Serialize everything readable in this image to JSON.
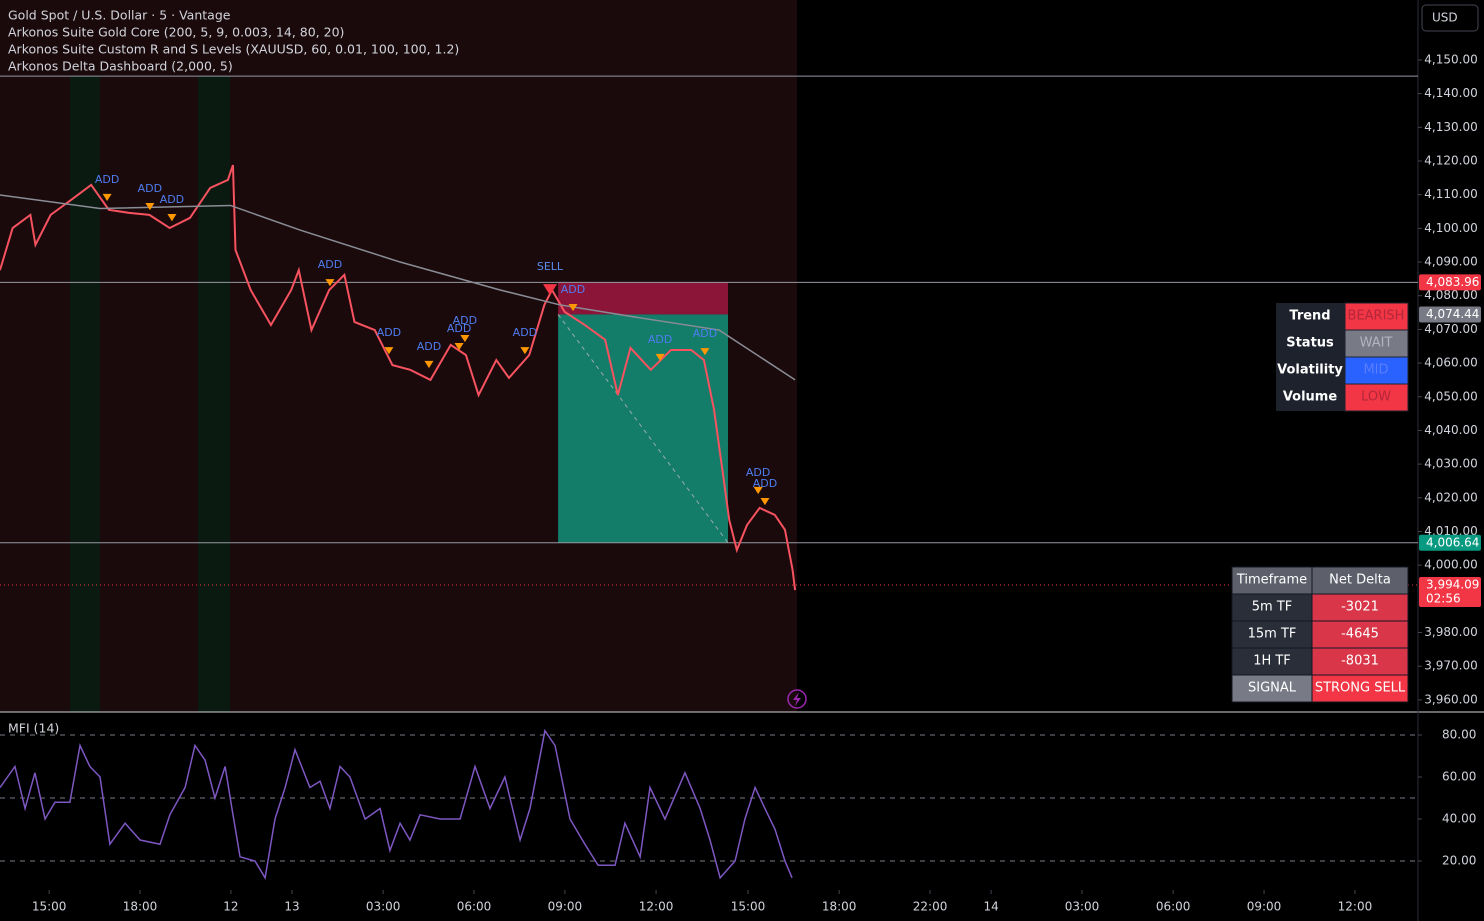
{
  "header": {
    "title": "Gold Spot / U.S. Dollar · 5 · Vantage",
    "indicators": [
      "Arkonos Suite Gold Core (200, 5, 9, 0.003, 14, 80, 20)",
      "Arkonos Suite Custom R and S Levels (XAUUSD, 60, 0.01, 100, 100, 1.2)",
      "Arkonos Delta Dashboard (2,000, 5)"
    ],
    "currency": "USD"
  },
  "chart_data": [
    {
      "type": "line",
      "xlim": [
        0,
        560
      ],
      "ylim": [
        3956.4,
        4167.8
      ],
      "yticks": [
        {
          "value": 4150,
          "label": "4,150.00"
        },
        {
          "value": 4140,
          "label": "4,140.00"
        },
        {
          "value": 4130,
          "label": "4,130.00"
        },
        {
          "value": 4120,
          "label": "4,120.00"
        },
        {
          "value": 4110,
          "label": "4,110.00"
        },
        {
          "value": 4100,
          "label": "4,100.00"
        },
        {
          "value": 4090,
          "label": "4,090.00"
        },
        {
          "value": 4080,
          "label": "4,080.00"
        },
        {
          "value": 4070,
          "label": "4,070.00"
        },
        {
          "value": 4060,
          "label": "4,060.00"
        },
        {
          "value": 4050,
          "label": "4,050.00"
        },
        {
          "value": 4040,
          "label": "4,040.00"
        },
        {
          "value": 4030,
          "label": "4,030.00"
        },
        {
          "value": 4020,
          "label": "4,020.00"
        },
        {
          "value": 4010,
          "label": "4,010.00"
        },
        {
          "value": 4000,
          "label": "4,000.00"
        },
        {
          "value": 3980,
          "label": "3,980.00"
        },
        {
          "value": 3970,
          "label": "3,970.00"
        },
        {
          "value": 3960,
          "label": "3,960.00"
        }
      ],
      "series": [
        {
          "color": "#f7525f",
          "x": [
            0,
            5,
            12,
            14,
            20,
            28,
            36,
            43,
            51,
            59,
            67,
            75,
            83,
            90,
            92,
            93,
            99,
            107,
            115,
            118,
            123,
            130,
            136,
            140,
            148,
            155,
            162,
            170,
            178,
            184,
            189,
            196,
            201,
            209,
            215,
            218,
            223,
            231,
            239,
            244,
            249,
            257,
            265,
            273,
            278,
            282,
            285,
            288,
            291,
            295,
            300,
            306,
            310,
            313,
            314
          ],
          "values": [
            4087.6,
            4100.1,
            4104.0,
            4095.1,
            4104.0,
            4108.4,
            4112.9,
            4105.5,
            4104.6,
            4104.0,
            4100.1,
            4103.1,
            4112.0,
            4114.4,
            4118.8,
            4093.6,
            4081.7,
            4071.3,
            4081.7,
            4087.6,
            4069.8,
            4081.7,
            4086.2,
            4072.2,
            4069.8,
            4059.4,
            4058.0,
            4055.0,
            4065.4,
            4062.4,
            4050.5,
            4060.9,
            4055.6,
            4062.4,
            4077.3,
            4081.7,
            4075.2,
            4071.3,
            4066.9,
            4050.5,
            4064.5,
            4058.0,
            4063.9,
            4063.9,
            4060.9,
            4046.1,
            4029.8,
            4013.4,
            4004.5,
            4011.9,
            4017.0,
            4014.9,
            4010.5,
            3998.6,
            3992.6
          ]
        },
        {
          "color": "#8a8d96",
          "x": [
            0,
            39.5,
            91,
            118.5,
            158,
            197.5,
            221,
            253,
            284,
            314
          ],
          "values": [
            4109.9,
            4105.9,
            4106.8,
            4099.5,
            4090.0,
            4081.7,
            4077.3,
            4073.4,
            4069.8,
            4055.0
          ]
        }
      ],
      "annotations": [
        {
          "text": "ADD",
          "x": 42.3,
          "y": 4114.4
        },
        {
          "text": "ADD",
          "x": 59.2,
          "y": 4111.7
        },
        {
          "text": "ADD",
          "x": 67.9,
          "y": 4108.4
        },
        {
          "text": "ADD",
          "x": 130.3,
          "y": 4089.1
        },
        {
          "text": "ADD",
          "x": 153.6,
          "y": 4068.9
        },
        {
          "text": "ADD",
          "x": 169.4,
          "y": 4064.8
        },
        {
          "text": "ADD",
          "x": 181.3,
          "y": 4070.1
        },
        {
          "text": "ADD",
          "x": 183.6,
          "y": 4072.5
        },
        {
          "text": "ADD",
          "x": 207.3,
          "y": 4068.9
        },
        {
          "text": "ADD",
          "x": 226.3,
          "y": 4081.7
        },
        {
          "text": "ADD",
          "x": 260.7,
          "y": 4066.9
        },
        {
          "text": "ADD",
          "x": 278.4,
          "y": 4068.6
        },
        {
          "text": "ADD",
          "x": 299.4,
          "y": 4027.4
        },
        {
          "text": "ADD",
          "x": 302.1,
          "y": 4024.1
        },
        {
          "text": "SELL",
          "x": 217.2,
          "y": 4088.5
        }
      ],
      "levels": [
        4145.2
      ],
      "price_labels": [
        {
          "value": 4083.96,
          "label": "4,083.96",
          "color": "#f23645",
          "line": true
        },
        {
          "value": 4074.44,
          "label": "4,074.44",
          "color": "#787b86",
          "line": false
        },
        {
          "value": 4006.64,
          "label": "4,006.64",
          "color": "#089981",
          "line": true
        },
        {
          "value": 3994.09,
          "label": "3,994.09",
          "color": "#f23645",
          "line": false,
          "countdown": "02:56"
        }
      ],
      "position": {
        "x": [
          220.4,
          287.5
        ],
        "stop": 4083.96,
        "entry": 4074.44,
        "target": 4006.64
      }
    },
    {
      "type": "line",
      "title": "MFI (14)",
      "xlim": [
        0,
        560
      ],
      "ylim": [
        6.2,
        90.95
      ],
      "yticks": [
        {
          "value": 80,
          "label": "80.00"
        },
        {
          "value": 60,
          "label": "60.00"
        },
        {
          "value": 40,
          "label": "40.00"
        },
        {
          "value": 20,
          "label": "20.00"
        }
      ],
      "bands": [
        80,
        50,
        20
      ],
      "xticks": [
        {
          "value": 19.4,
          "label": "15:00"
        },
        {
          "value": 55.3,
          "label": "18:00"
        },
        {
          "value": 91.2,
          "label": "12"
        },
        {
          "value": 115.3,
          "label": "13"
        },
        {
          "value": 151.3,
          "label": "03:00"
        },
        {
          "value": 187.2,
          "label": "06:00"
        },
        {
          "value": 223.1,
          "label": "09:00"
        },
        {
          "value": 259.1,
          "label": "12:00"
        },
        {
          "value": 295.4,
          "label": "15:00"
        },
        {
          "value": 331.4,
          "label": "18:00"
        },
        {
          "value": 367.3,
          "label": "22:00"
        },
        {
          "value": 391.4,
          "label": "14"
        },
        {
          "value": 427.3,
          "label": "03:00"
        },
        {
          "value": 463.3,
          "label": "06:00"
        },
        {
          "value": 499.2,
          "label": "09:00"
        },
        {
          "value": 535.1,
          "label": "12:00"
        }
      ],
      "series": [
        {
          "color": "#7e57c2",
          "x": [
            0,
            5.9,
            9.9,
            13.8,
            17.8,
            21.7,
            27.6,
            31.6,
            35.5,
            39.5,
            43.4,
            49.4,
            55.3,
            63.2,
            67.1,
            73.1,
            77,
            81,
            84.9,
            88.9,
            91.6,
            94.8,
            100.7,
            104.7,
            108.6,
            112.6,
            116.5,
            122.4,
            126.4,
            130.3,
            134.3,
            138.2,
            144.2,
            150.1,
            154,
            158,
            161.9,
            165.9,
            173.8,
            181.7,
            187.6,
            193.5,
            199.4,
            205.4,
            209.3,
            215.2,
            219.2,
            225.1,
            231,
            236.2,
            242.9,
            246.8,
            252.8,
            256.7,
            262.6,
            270.5,
            276.5,
            280.4,
            284.4,
            290.3,
            294.2,
            298.2,
            302.1,
            306.1,
            310,
            312.8
          ],
          "values": [
            55,
            65,
            45,
            62,
            40,
            48,
            48,
            75,
            65,
            60,
            28,
            38,
            30,
            28,
            42,
            55,
            75,
            68,
            50,
            65,
            45,
            22,
            20,
            12,
            40,
            55,
            73,
            55,
            58,
            45,
            65,
            60,
            40,
            45,
            25,
            38,
            30,
            42,
            40,
            40,
            65,
            45,
            60,
            30,
            45,
            82,
            75,
            40,
            28,
            18,
            18,
            38,
            22,
            55,
            40,
            62,
            45,
            30,
            12,
            20,
            40,
            55,
            45,
            35,
            20,
            12
          ]
        }
      ]
    }
  ],
  "dashboard": {
    "rows": [
      [
        "Trend",
        "BEARISH"
      ],
      [
        "Status",
        "WAIT"
      ],
      [
        "Volatility",
        "MID"
      ],
      [
        "Volume",
        "LOW"
      ]
    ]
  },
  "delta_table": {
    "header": [
      "Timeframe",
      "Net Delta"
    ],
    "rows": [
      [
        "5m TF",
        -3021
      ],
      [
        "15m TF",
        -4645
      ],
      [
        "1H TF",
        -8031
      ],
      [
        "SIGNAL",
        "STRONG SELL"
      ]
    ]
  }
}
